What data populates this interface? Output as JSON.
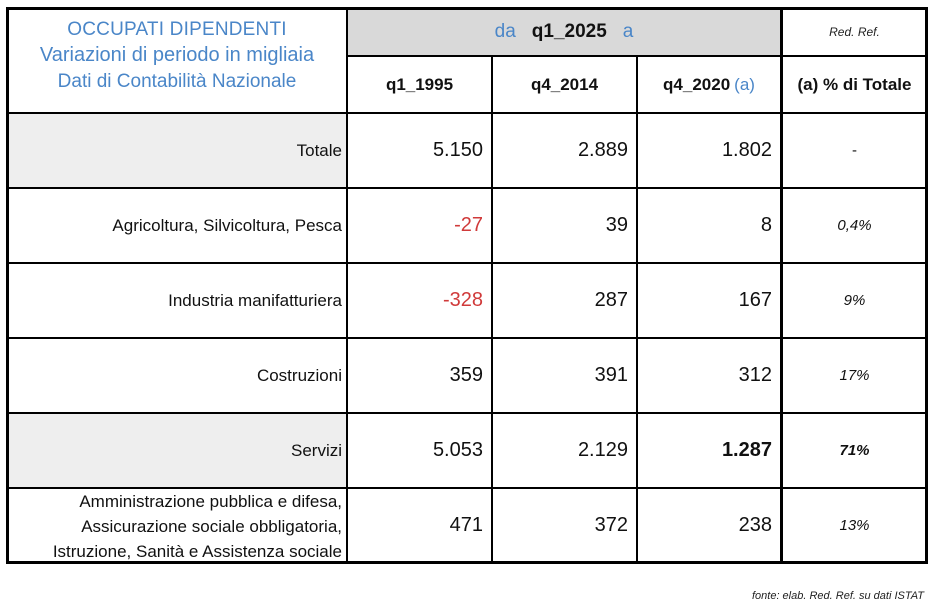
{
  "header": {
    "title_line1": "OCCUPATI DIPENDENTI",
    "title_line2": "Variazioni di periodo in migliaia",
    "title_line3": "Dati di Contabilità Nazionale",
    "da_label": "da",
    "period": "q1_2025",
    "a_label": "a",
    "brand": "Red. Ref."
  },
  "columns": {
    "c1": "q1_1995",
    "c2": "q4_2014",
    "c3": "q4_2020",
    "c3_note": "(a)",
    "c4": "(a) % di Totale"
  },
  "rows": [
    {
      "label": "Totale",
      "v1": "5.150",
      "v2": "2.889",
      "v3": "1.802",
      "pct": "-"
    },
    {
      "label": "Agricoltura, Silvicoltura, Pesca",
      "v1": "-27",
      "v2": "39",
      "v3": "8",
      "pct": "0,4%"
    },
    {
      "label": "Industria manifatturiera",
      "v1": "-328",
      "v2": "287",
      "v3": "167",
      "pct": "9%"
    },
    {
      "label": "Costruzioni",
      "v1": "359",
      "v2": "391",
      "v3": "312",
      "pct": "17%"
    },
    {
      "label": "Servizi",
      "v1": "5.053",
      "v2": "2.129",
      "v3": "1.287",
      "pct": "71%"
    },
    {
      "label_line1": "Amministrazione pubblica e difesa,",
      "label_line2": "Assicurazione sociale obbligatoria,",
      "label_line3": "Istruzione, Sanità e Assistenza sociale",
      "v1": "471",
      "v2": "372",
      "v3": "238",
      "pct": "13%"
    }
  ],
  "source": "fonte: elab. Red. Ref. su dati ISTAT",
  "colors": {
    "accent_blue": "#4a86c8",
    "negative_red": "#d03a3a",
    "header_gray": "#d9d9d9",
    "label_gray": "#eeeeee"
  }
}
